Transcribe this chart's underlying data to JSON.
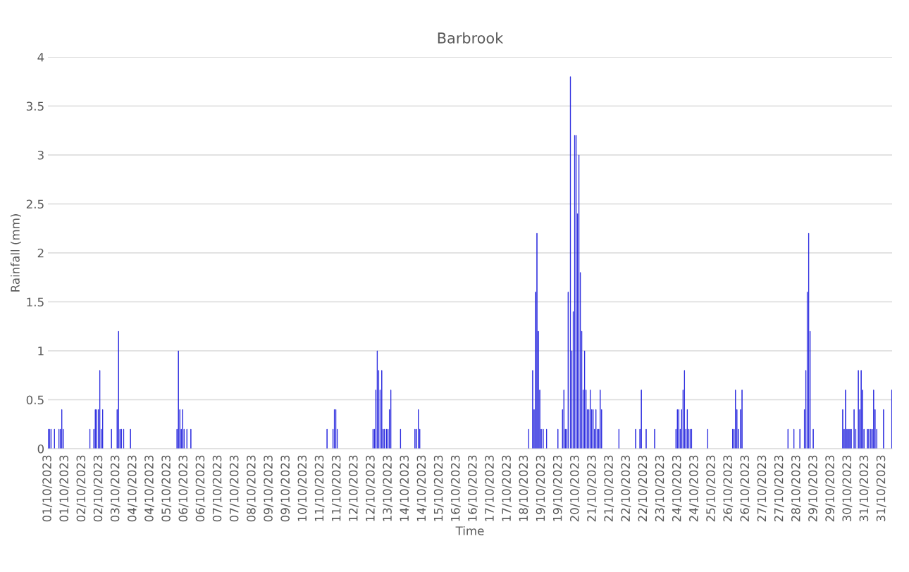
{
  "chart_data": {
    "type": "bar",
    "title": "Barbrook",
    "xlabel": "Time",
    "ylabel": "Rainfall (mm)",
    "series": [
      {
        "color": "#2323dd",
        "x": [
          "2023-10-01T00:15",
          "2023-10-01T01:30",
          "2023-10-01T02:45",
          "2023-10-01T05:45",
          "2023-10-01T09:45",
          "2023-10-01T11:00",
          "2023-10-01T12:15",
          "2023-10-01T13:30",
          "2023-10-02T13:00",
          "2023-10-02T16:30",
          "2023-10-02T17:45",
          "2023-10-02T19:00",
          "2023-10-02T20:30",
          "2023-10-02T21:45",
          "2023-10-02T23:00",
          "2023-10-03T00:15",
          "2023-10-03T08:00",
          "2023-10-03T13:00",
          "2023-10-03T14:15",
          "2023-10-03T15:30",
          "2023-10-03T16:45",
          "2023-10-03T18:45",
          "2023-10-04T00:45",
          "2023-10-05T17:45",
          "2023-10-05T19:00",
          "2023-10-05T20:15",
          "2023-10-05T21:30",
          "2023-10-05T22:45",
          "2023-10-06T00:00",
          "2023-10-06T02:30",
          "2023-10-06T06:00",
          "2023-10-11T06:00",
          "2023-10-11T11:15",
          "2023-10-11T12:30",
          "2023-10-11T13:45",
          "2023-10-11T15:00",
          "2023-10-12T22:30",
          "2023-10-12T23:45",
          "2023-10-13T01:00",
          "2023-10-13T02:15",
          "2023-10-13T03:30",
          "2023-10-13T04:45",
          "2023-10-13T06:15",
          "2023-10-13T07:30",
          "2023-10-13T08:45",
          "2023-10-13T10:30",
          "2023-10-13T11:45",
          "2023-10-13T13:00",
          "2023-10-13T14:15",
          "2023-10-13T22:45",
          "2023-10-14T11:30",
          "2023-10-14T13:00",
          "2023-10-14T14:30",
          "2023-10-14T15:45",
          "2023-10-18T15:45",
          "2023-10-18T19:15",
          "2023-10-18T20:30",
          "2023-10-18T21:45",
          "2023-10-18T23:00",
          "2023-10-19T00:15",
          "2023-10-19T01:30",
          "2023-10-19T02:45",
          "2023-10-19T04:30",
          "2023-10-19T07:30",
          "2023-10-19T17:30",
          "2023-10-19T21:30",
          "2023-10-19T22:45",
          "2023-10-20T00:00",
          "2023-10-20T01:15",
          "2023-10-20T02:30",
          "2023-10-20T04:30",
          "2023-10-20T05:45",
          "2023-10-20T07:00",
          "2023-10-20T08:15",
          "2023-10-20T09:30",
          "2023-10-20T10:45",
          "2023-10-20T12:00",
          "2023-10-20T13:15",
          "2023-10-20T14:30",
          "2023-10-20T15:45",
          "2023-10-20T17:00",
          "2023-10-20T18:15",
          "2023-10-20T19:30",
          "2023-10-20T20:45",
          "2023-10-20T22:00",
          "2023-10-20T23:15",
          "2023-10-21T00:30",
          "2023-10-21T01:45",
          "2023-10-21T03:00",
          "2023-10-21T04:15",
          "2023-10-21T05:30",
          "2023-10-21T06:45",
          "2023-10-21T08:00",
          "2023-10-21T23:15",
          "2023-10-22T14:00",
          "2023-10-22T17:45",
          "2023-10-22T19:00",
          "2023-10-22T23:15",
          "2023-10-23T06:45",
          "2023-10-24T01:30",
          "2023-10-24T02:45",
          "2023-10-24T04:00",
          "2023-10-24T05:15",
          "2023-10-24T06:30",
          "2023-10-24T07:45",
          "2023-10-24T09:00",
          "2023-10-24T10:15",
          "2023-10-24T11:30",
          "2023-10-24T12:45",
          "2023-10-24T14:00",
          "2023-10-24T15:15",
          "2023-10-25T05:30",
          "2023-10-26T03:30",
          "2023-10-26T04:45",
          "2023-10-26T06:00",
          "2023-10-26T07:15",
          "2023-10-26T08:30",
          "2023-10-26T10:30",
          "2023-10-26T11:45",
          "2023-10-28T04:15",
          "2023-10-28T09:30",
          "2023-10-28T14:45",
          "2023-10-28T18:45",
          "2023-10-28T20:00",
          "2023-10-28T21:15",
          "2023-10-28T22:30",
          "2023-10-28T23:45",
          "2023-10-29T02:30",
          "2023-10-30T04:30",
          "2023-10-30T05:45",
          "2023-10-30T07:00",
          "2023-10-30T08:15",
          "2023-10-30T09:30",
          "2023-10-30T10:45",
          "2023-10-30T12:00",
          "2023-10-30T14:30",
          "2023-10-30T16:00",
          "2023-10-30T18:15",
          "2023-10-30T19:30",
          "2023-10-30T20:45",
          "2023-10-30T22:00",
          "2023-10-30T23:15",
          "2023-10-31T02:15",
          "2023-10-31T03:30",
          "2023-10-31T05:15",
          "2023-10-31T06:30",
          "2023-10-31T07:45",
          "2023-10-31T09:00",
          "2023-10-31T10:30",
          "2023-10-31T16:30",
          "2023-10-31T23:45"
        ],
        "values": [
          0.2,
          0.2,
          0.2,
          0.2,
          0.2,
          0.2,
          0.4,
          0.2,
          0.2,
          0.2,
          0.4,
          0.4,
          0.4,
          0.8,
          0.2,
          0.4,
          0.2,
          0.4,
          1.2,
          0.2,
          0.2,
          0.2,
          0.2,
          0.2,
          1.0,
          0.4,
          0.2,
          0.4,
          0.2,
          0.2,
          0.2,
          0.2,
          0.2,
          0.4,
          0.4,
          0.2,
          0.2,
          0.2,
          0.6,
          1.0,
          0.8,
          0.6,
          0.8,
          0.2,
          0.2,
          0.2,
          0.2,
          0.4,
          0.6,
          0.2,
          0.2,
          0.2,
          0.4,
          0.2,
          0.2,
          0.8,
          0.4,
          1.6,
          2.2,
          1.2,
          0.6,
          0.2,
          0.2,
          0.2,
          0.2,
          0.4,
          0.6,
          0.2,
          0.2,
          1.6,
          3.8,
          1.0,
          1.4,
          3.2,
          3.2,
          2.4,
          3.0,
          1.8,
          1.2,
          0.6,
          1.0,
          0.6,
          0.4,
          0.4,
          0.6,
          0.4,
          0.4,
          0.2,
          0.4,
          0.2,
          0.2,
          0.6,
          0.4,
          0.2,
          0.2,
          0.2,
          0.6,
          0.2,
          0.2,
          0.2,
          0.4,
          0.4,
          0.2,
          0.4,
          0.6,
          0.8,
          0.2,
          0.4,
          0.2,
          0.2,
          0.2,
          0.2,
          0.2,
          0.2,
          0.6,
          0.4,
          0.2,
          0.4,
          0.6,
          0.2,
          0.2,
          0.2,
          0.4,
          0.8,
          1.6,
          2.2,
          1.2,
          0.2,
          0.4,
          0.2,
          0.6,
          0.2,
          0.2,
          0.2,
          0.2,
          0.4,
          0.2,
          0.8,
          0.4,
          0.8,
          0.6,
          0.2,
          0.2,
          0.2,
          0.2,
          0.2,
          0.6,
          0.4,
          0.2,
          0.4,
          0.6
        ]
      }
    ],
    "xlim": [
      "2023-10-01T00:00",
      "2023-11-01T00:00"
    ],
    "xticks": [
      {
        "value": "2023-10-01T00:00",
        "label": "01/10/2023"
      },
      {
        "value": "2023-10-01T15:00",
        "label": "01/10/2023"
      },
      {
        "value": "2023-10-02T06:00",
        "label": "02/10/2023"
      },
      {
        "value": "2023-10-02T21:00",
        "label": "02/10/2023"
      },
      {
        "value": "2023-10-03T12:00",
        "label": "03/10/2023"
      },
      {
        "value": "2023-10-04T03:00",
        "label": "04/10/2023"
      },
      {
        "value": "2023-10-04T18:00",
        "label": "04/10/2023"
      },
      {
        "value": "2023-10-05T09:00",
        "label": "05/10/2023"
      },
      {
        "value": "2023-10-06T00:00",
        "label": "06/10/2023"
      },
      {
        "value": "2023-10-06T15:00",
        "label": "06/10/2023"
      },
      {
        "value": "2023-10-07T06:00",
        "label": "07/10/2023"
      },
      {
        "value": "2023-10-07T21:00",
        "label": "07/10/2023"
      },
      {
        "value": "2023-10-08T12:00",
        "label": "08/10/2023"
      },
      {
        "value": "2023-10-09T03:00",
        "label": "09/10/2023"
      },
      {
        "value": "2023-10-09T18:00",
        "label": "09/10/2023"
      },
      {
        "value": "2023-10-10T09:00",
        "label": "10/10/2023"
      },
      {
        "value": "2023-10-11T00:00",
        "label": "11/10/2023"
      },
      {
        "value": "2023-10-11T15:00",
        "label": "11/10/2023"
      },
      {
        "value": "2023-10-12T06:00",
        "label": "12/10/2023"
      },
      {
        "value": "2023-10-12T21:00",
        "label": "12/10/2023"
      },
      {
        "value": "2023-10-13T12:00",
        "label": "13/10/2023"
      },
      {
        "value": "2023-10-14T03:00",
        "label": "14/10/2023"
      },
      {
        "value": "2023-10-14T18:00",
        "label": "14/10/2023"
      },
      {
        "value": "2023-10-15T09:00",
        "label": "15/10/2023"
      },
      {
        "value": "2023-10-16T00:00",
        "label": "16/10/2023"
      },
      {
        "value": "2023-10-16T15:00",
        "label": "16/10/2023"
      },
      {
        "value": "2023-10-17T06:00",
        "label": "17/10/2023"
      },
      {
        "value": "2023-10-17T21:00",
        "label": "17/10/2023"
      },
      {
        "value": "2023-10-18T12:00",
        "label": "18/10/2023"
      },
      {
        "value": "2023-10-19T03:00",
        "label": "19/10/2023"
      },
      {
        "value": "2023-10-19T18:00",
        "label": "19/10/2023"
      },
      {
        "value": "2023-10-20T09:00",
        "label": "20/10/2023"
      },
      {
        "value": "2023-10-21T00:00",
        "label": "21/10/2023"
      },
      {
        "value": "2023-10-21T15:00",
        "label": "21/10/2023"
      },
      {
        "value": "2023-10-22T06:00",
        "label": "22/10/2023"
      },
      {
        "value": "2023-10-22T21:00",
        "label": "22/10/2023"
      },
      {
        "value": "2023-10-23T12:00",
        "label": "23/10/2023"
      },
      {
        "value": "2023-10-24T03:00",
        "label": "24/10/2023"
      },
      {
        "value": "2023-10-24T18:00",
        "label": "24/10/2023"
      },
      {
        "value": "2023-10-25T09:00",
        "label": "25/10/2023"
      },
      {
        "value": "2023-10-26T00:00",
        "label": "26/10/2023"
      },
      {
        "value": "2023-10-26T15:00",
        "label": "26/10/2023"
      },
      {
        "value": "2023-10-27T06:00",
        "label": "27/10/2023"
      },
      {
        "value": "2023-10-27T21:00",
        "label": "27/10/2023"
      },
      {
        "value": "2023-10-28T12:00",
        "label": "28/10/2023"
      },
      {
        "value": "2023-10-29T03:00",
        "label": "29/10/2023"
      },
      {
        "value": "2023-10-29T18:00",
        "label": "29/10/2023"
      },
      {
        "value": "2023-10-30T09:00",
        "label": "30/10/2023"
      },
      {
        "value": "2023-10-31T00:00",
        "label": "31/10/2023"
      },
      {
        "value": "2023-10-31T15:00",
        "label": "31/10/2023"
      }
    ],
    "ylim": [
      0,
      4
    ],
    "yticks": [
      0,
      0.5,
      1,
      1.5,
      2,
      2.5,
      3,
      3.5,
      4
    ],
    "grid": "y"
  }
}
